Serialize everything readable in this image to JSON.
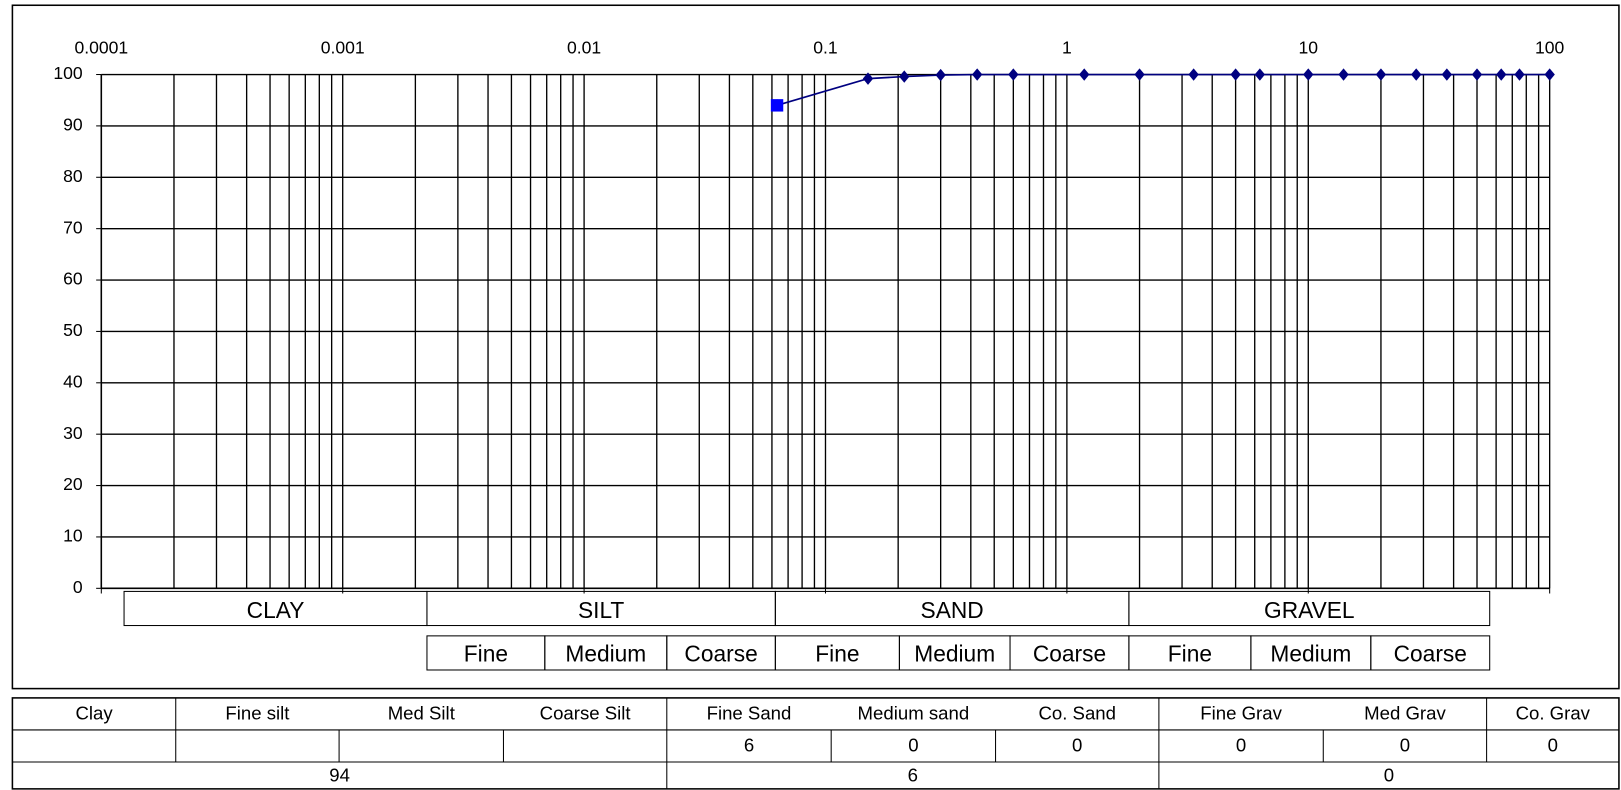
{
  "chart_data": {
    "type": "line",
    "log_x": true,
    "grid": true,
    "xlim": [
      0.0001,
      100
    ],
    "xticks": [
      0.0001,
      0.001,
      0.01,
      0.1,
      1,
      10,
      100
    ],
    "ylim": [
      0,
      100
    ],
    "yticks": [
      0,
      10,
      20,
      30,
      40,
      50,
      60,
      70,
      80,
      90,
      100
    ],
    "series": [
      {
        "color": "#000080",
        "marker": "diamond",
        "x": [
          0.063,
          0.15,
          0.212,
          0.3,
          0.425,
          0.6,
          1.18,
          2,
          3.35,
          5,
          6.3,
          10,
          14,
          20,
          28,
          37.5,
          50,
          63,
          75,
          100
        ],
        "values": [
          94,
          99.2,
          99.6,
          99.9,
          100,
          100,
          100,
          100,
          100,
          100,
          100,
          100,
          100,
          100,
          100,
          100,
          100,
          100,
          100,
          100
        ]
      },
      {
        "color": "#0000ff",
        "marker": "square",
        "x": [
          0.063
        ],
        "values": [
          94
        ]
      }
    ],
    "soil_classes": [
      "CLAY",
      "SILT",
      "SAND",
      "GRAVEL"
    ],
    "subclasses": [
      "Fine",
      "Medium",
      "Coarse",
      "Fine",
      "Medium",
      "Coarse",
      "Fine",
      "Medium",
      "Coarse"
    ]
  },
  "table": {
    "headers": [
      "Clay",
      "Fine silt",
      "Med Silt",
      "Coarse Silt",
      "Fine Sand",
      "Medium sand",
      "Co. Sand",
      "Fine Grav",
      "Med Grav",
      "Co. Grav"
    ],
    "fractions": [
      6,
      0,
      0,
      0,
      0,
      0
    ],
    "totals": [
      94,
      6,
      0
    ]
  }
}
